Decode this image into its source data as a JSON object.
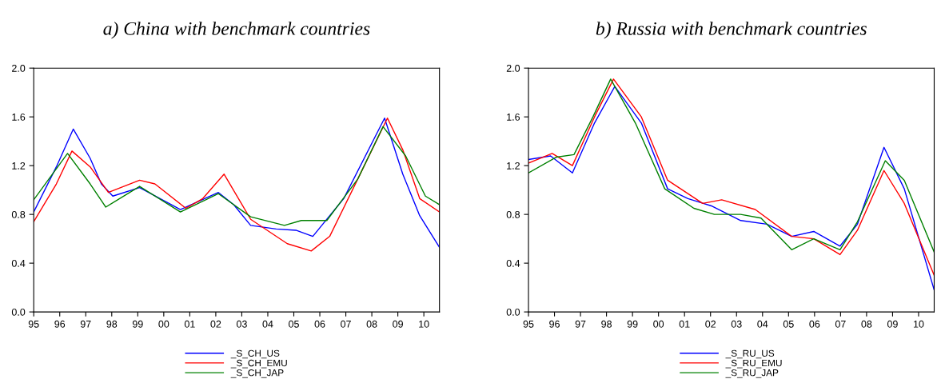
{
  "chart_data": [
    {
      "type": "line",
      "title": "a) China with benchmark countries",
      "legend": "bottom",
      "grid": false,
      "marker": "none",
      "line_style": "solid",
      "xlim": [
        1995,
        2010.6
      ],
      "xticks": [
        {
          "value": 1995,
          "label": "95"
        },
        {
          "value": 1996,
          "label": "96"
        },
        {
          "value": 1997,
          "label": "97"
        },
        {
          "value": 1998,
          "label": "98"
        },
        {
          "value": 1999,
          "label": "99"
        },
        {
          "value": 2000,
          "label": "00"
        },
        {
          "value": 2001,
          "label": "01"
        },
        {
          "value": 2002,
          "label": "02"
        },
        {
          "value": 2003,
          "label": "03"
        },
        {
          "value": 2004,
          "label": "04"
        },
        {
          "value": 2005,
          "label": "05"
        },
        {
          "value": 2006,
          "label": "06"
        },
        {
          "value": 2007,
          "label": "07"
        },
        {
          "value": 2008,
          "label": "08"
        },
        {
          "value": 2009,
          "label": "09"
        },
        {
          "value": 2010,
          "label": "10"
        }
      ],
      "ylim": [
        0,
        2
      ],
      "yticks": [
        {
          "value": 0,
          "label": "0.0"
        },
        {
          "value": 0.4,
          "label": "0.4"
        },
        {
          "value": 0.8,
          "label": "0.8"
        },
        {
          "value": 1.2,
          "label": "1.2"
        },
        {
          "value": 1.6,
          "label": "1.6"
        },
        {
          "value": 2,
          "label": "2.0"
        }
      ],
      "series": [
        {
          "name": "_S_CH_US",
          "color": "#0000ff",
          "x": [
            1995,
            1995.87,
            1996.52,
            1997.17,
            1997.6,
            1998.04,
            1999.07,
            2000.64,
            2002.1,
            2002.69,
            2003.34,
            2004.32,
            2005.08,
            2005.73,
            2006.92,
            2008.49,
            2009.19,
            2009.84,
            2010.6
          ],
          "values": [
            0.82,
            1.19,
            1.5,
            1.26,
            1.05,
            0.95,
            1.02,
            0.84,
            0.98,
            0.88,
            0.71,
            0.68,
            0.67,
            0.62,
            0.93,
            1.59,
            1.13,
            0.79,
            0.53
          ]
        },
        {
          "name": "_S_CH_EMU",
          "color": "#ff0000",
          "x": [
            1995,
            1995.87,
            1996.47,
            1997.17,
            1997.87,
            1999.07,
            1999.66,
            2000.85,
            2001.5,
            2002.32,
            2003.34,
            2004.75,
            2005.67,
            2006.38,
            2007.46,
            2008.6,
            2009.19,
            2009.84,
            2010.6
          ],
          "values": [
            0.74,
            1.05,
            1.32,
            1.19,
            0.98,
            1.08,
            1.05,
            0.85,
            0.93,
            1.13,
            0.76,
            0.56,
            0.5,
            0.62,
            1.09,
            1.59,
            1.33,
            0.93,
            0.82
          ]
        },
        {
          "name": "_S_CH_JAP",
          "color": "#008000",
          "x": [
            1995,
            1996.3,
            1997.17,
            1997.77,
            1999.07,
            2000.64,
            2002.1,
            2003.34,
            2004.64,
            2005.29,
            2006.27,
            2007.46,
            2008.43,
            2009.3,
            2010.06,
            2010.6
          ],
          "values": [
            0.92,
            1.3,
            1.05,
            0.86,
            1.03,
            0.82,
            0.97,
            0.78,
            0.71,
            0.75,
            0.75,
            1.09,
            1.52,
            1.28,
            0.95,
            0.88
          ]
        }
      ]
    },
    {
      "type": "line",
      "title": "b) Russia with benchmark countries",
      "legend": "bottom",
      "grid": false,
      "marker": "none",
      "line_style": "solid",
      "xlim": [
        1995,
        2010.6
      ],
      "xticks": [
        {
          "value": 1995,
          "label": "95"
        },
        {
          "value": 1996,
          "label": "96"
        },
        {
          "value": 1997,
          "label": "97"
        },
        {
          "value": 1998,
          "label": "98"
        },
        {
          "value": 1999,
          "label": "99"
        },
        {
          "value": 2000,
          "label": "00"
        },
        {
          "value": 2001,
          "label": "01"
        },
        {
          "value": 2002,
          "label": "02"
        },
        {
          "value": 2003,
          "label": "03"
        },
        {
          "value": 2004,
          "label": "04"
        },
        {
          "value": 2005,
          "label": "05"
        },
        {
          "value": 2006,
          "label": "06"
        },
        {
          "value": 2007,
          "label": "07"
        },
        {
          "value": 2008,
          "label": "08"
        },
        {
          "value": 2009,
          "label": "09"
        },
        {
          "value": 2010,
          "label": "10"
        }
      ],
      "ylim": [
        0,
        2
      ],
      "yticks": [
        {
          "value": 0,
          "label": "0.0"
        },
        {
          "value": 0.4,
          "label": "0.4"
        },
        {
          "value": 0.8,
          "label": "0.8"
        },
        {
          "value": 1.2,
          "label": "1.2"
        },
        {
          "value": 1.6,
          "label": "1.6"
        },
        {
          "value": 2,
          "label": "2.0"
        }
      ],
      "series": [
        {
          "name": "_S_RU_US",
          "color": "#0000ff",
          "x": [
            1995,
            1995.85,
            1996.69,
            1997.54,
            1998.32,
            1999.34,
            2000.35,
            2001.13,
            2002.03,
            2003.16,
            2004.17,
            2005.12,
            2005.97,
            2006.98,
            2007.65,
            2008.67,
            2009.45,
            2010.6
          ],
          "values": [
            1.25,
            1.28,
            1.14,
            1.55,
            1.85,
            1.55,
            1.01,
            0.93,
            0.87,
            0.75,
            0.72,
            0.62,
            0.66,
            0.54,
            0.72,
            1.35,
            1.01,
            0.18
          ]
        },
        {
          "name": "_S_RU_EMU",
          "color": "#ff0000",
          "x": [
            1995,
            1995.91,
            1996.69,
            1997.54,
            1998.27,
            1999.34,
            2000.35,
            2001.7,
            2002.43,
            2003.72,
            2005.12,
            2005.97,
            2006.98,
            2007.65,
            2008.67,
            2009.45,
            2010.6
          ],
          "values": [
            1.22,
            1.3,
            1.2,
            1.6,
            1.91,
            1.6,
            1.08,
            0.89,
            0.92,
            0.84,
            0.62,
            0.6,
            0.47,
            0.67,
            1.16,
            0.89,
            0.3
          ]
        },
        {
          "name": "_S_RU_JAP",
          "color": "#008000",
          "x": [
            1995,
            1996.08,
            1996.75,
            1997.48,
            1998.16,
            1999.11,
            2000.24,
            2001.36,
            2002.15,
            2003.16,
            2003.94,
            2005.12,
            2005.97,
            2006.98,
            2007.65,
            2008.72,
            2009.45,
            2010.6
          ],
          "values": [
            1.14,
            1.27,
            1.29,
            1.6,
            1.91,
            1.55,
            1.01,
            0.85,
            0.8,
            0.8,
            0.77,
            0.51,
            0.6,
            0.51,
            0.74,
            1.24,
            1.08,
            0.49
          ]
        }
      ]
    }
  ]
}
